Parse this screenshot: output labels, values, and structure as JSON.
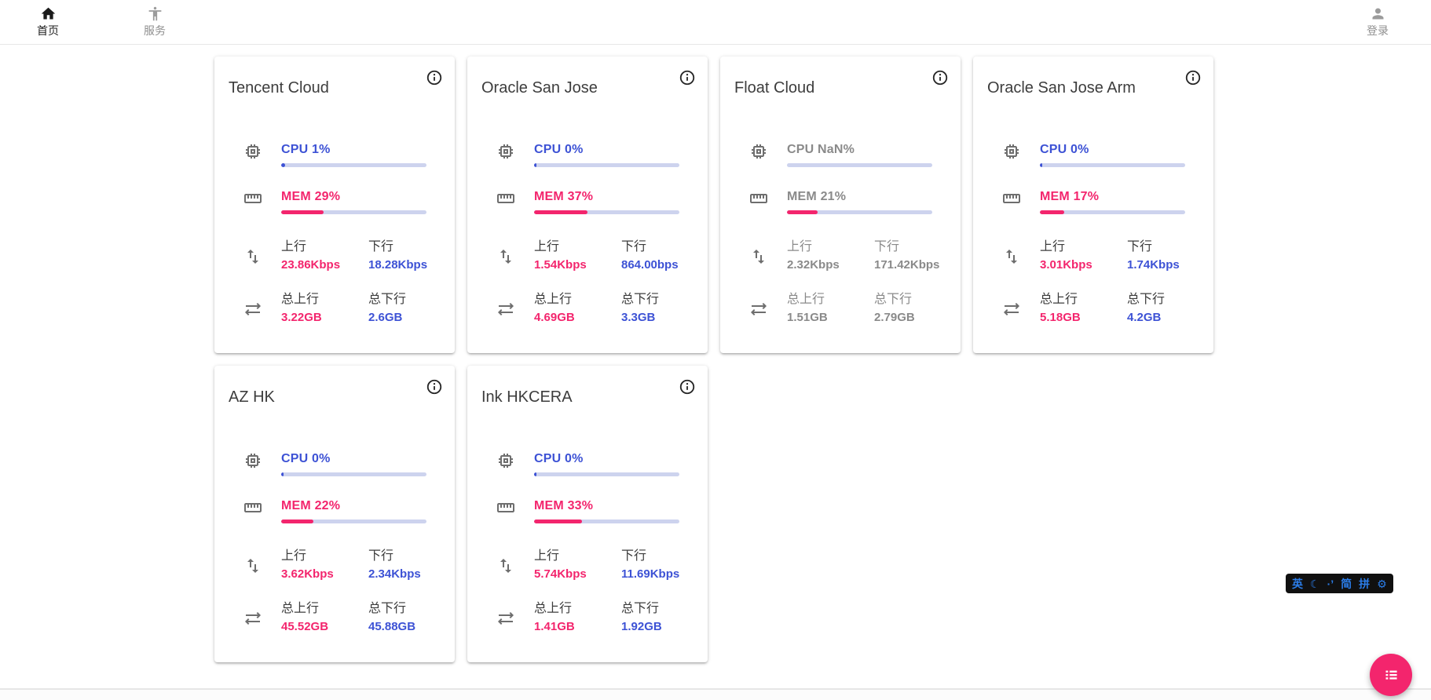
{
  "colors": {
    "accent_pink": "#f3256d",
    "accent_blue": "#3d52d5",
    "bar_track": "#cdd3ee",
    "icon_gray": "#6e6e6e",
    "offline_gray": "#8a8a8a",
    "ime_blue": "#2b7de9"
  },
  "navbar": {
    "home": {
      "label": "首页",
      "icon": "home-icon"
    },
    "services": {
      "label": "服务",
      "icon": "accessibility-icon"
    },
    "login": {
      "label": "登录",
      "icon": "person-icon"
    }
  },
  "labels": {
    "upload": "上行",
    "download": "下行",
    "total_upload": "总上行",
    "total_download": "总下行"
  },
  "servers": [
    {
      "name": "Tencent Cloud",
      "cpu_text": "CPU 1%",
      "cpu_pct": 1,
      "mem_text": "MEM 29%",
      "mem_pct": 29,
      "upload_speed": "23.86Kbps",
      "download_speed": "18.28Kbps",
      "total_upload": "3.22GB",
      "total_download": "2.6GB",
      "offline": false
    },
    {
      "name": "Oracle San Jose",
      "cpu_text": "CPU 0%",
      "cpu_pct": 0,
      "mem_text": "MEM 37%",
      "mem_pct": 37,
      "upload_speed": "1.54Kbps",
      "download_speed": "864.00bps",
      "total_upload": "4.69GB",
      "total_download": "3.3GB",
      "offline": false
    },
    {
      "name": "Float Cloud",
      "cpu_text": "CPU NaN%",
      "cpu_pct": null,
      "mem_text": "MEM 21%",
      "mem_pct": 21,
      "upload_speed": "2.32Kbps",
      "download_speed": "171.42Kbps",
      "total_upload": "1.51GB",
      "total_download": "2.79GB",
      "offline": true
    },
    {
      "name": "Oracle San Jose Arm",
      "cpu_text": "CPU 0%",
      "cpu_pct": 0,
      "mem_text": "MEM 17%",
      "mem_pct": 17,
      "upload_speed": "3.01Kbps",
      "download_speed": "1.74Kbps",
      "total_upload": "5.18GB",
      "total_download": "4.2GB",
      "offline": false
    },
    {
      "name": "AZ HK",
      "cpu_text": "CPU 0%",
      "cpu_pct": 0,
      "mem_text": "MEM 22%",
      "mem_pct": 22,
      "upload_speed": "3.62Kbps",
      "download_speed": "2.34Kbps",
      "total_upload": "45.52GB",
      "total_download": "45.88GB",
      "offline": false
    },
    {
      "name": "Ink HKCERA",
      "cpu_text": "CPU 0%",
      "cpu_pct": 0,
      "mem_text": "MEM 33%",
      "mem_pct": 33,
      "upload_speed": "5.74Kbps",
      "download_speed": "11.69Kbps",
      "total_upload": "1.41GB",
      "total_download": "1.92GB",
      "offline": false
    }
  ],
  "ime_toolbar": {
    "items": [
      {
        "name": "ime-english-mode",
        "label": "英"
      },
      {
        "name": "ime-fullwidth-moon-icon",
        "label": "☾"
      },
      {
        "name": "ime-punctuation-mode",
        "label": "·’"
      },
      {
        "name": "ime-simplified-chinese",
        "label": "简"
      },
      {
        "name": "ime-pinyin-scheme",
        "label": "拼"
      },
      {
        "name": "ime-settings-gear-icon",
        "label": "⚙"
      }
    ]
  },
  "fab": {
    "icon": "list-icon"
  }
}
